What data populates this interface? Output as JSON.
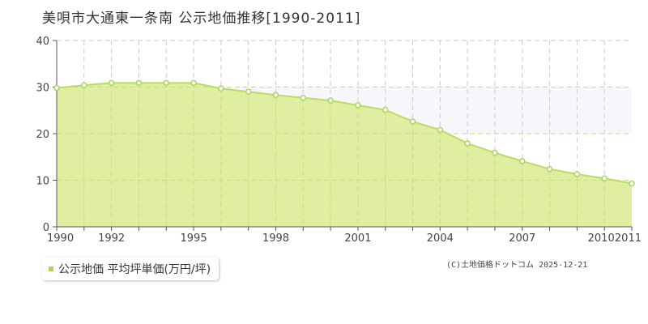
{
  "title": "美唄市大通東一条南 公示地価推移[1990-2011]",
  "legend": {
    "label": "公示地価 平均坪単価(万円/坪)"
  },
  "credit": "(C)土地価格ドットコム 2025-12-21",
  "colors": {
    "fill": "#dcec96",
    "line": "#b8dd62",
    "point_stroke": "#a8d65a",
    "point_fill": "#ffffff",
    "grid": "#cccccc",
    "axis": "#555555",
    "plot_bg": "#ffffff",
    "upper_band": "#f7f7fb"
  },
  "chart_data": {
    "type": "area",
    "xlim": [
      1990,
      2011
    ],
    "ylim": [
      0,
      40
    ],
    "yticks": [
      0,
      10,
      20,
      30,
      40
    ],
    "xtick_labels": [
      1990,
      1992,
      1995,
      1998,
      2001,
      2004,
      2007,
      2010,
      2011
    ],
    "grid": true,
    "legend_position": "bottom-left",
    "series": [
      {
        "name": "公示地価 平均坪単価(万円/坪)",
        "x": [
          1990,
          1991,
          1992,
          1993,
          1994,
          1995,
          1996,
          1997,
          1998,
          1999,
          2000,
          2001,
          2002,
          2003,
          2004,
          2005,
          2006,
          2007,
          2008,
          2009,
          2010,
          2011
        ],
        "values": [
          29.8,
          30.4,
          30.9,
          30.9,
          30.9,
          30.9,
          29.7,
          29.0,
          28.3,
          27.7,
          27.1,
          26.1,
          25.1,
          22.6,
          20.8,
          17.9,
          15.9,
          14.1,
          12.4,
          11.3,
          10.4,
          9.3
        ]
      }
    ]
  }
}
